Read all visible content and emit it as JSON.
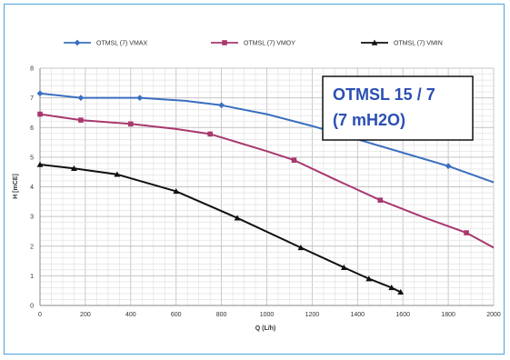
{
  "chart_data": {
    "type": "line",
    "title": "",
    "xlabel": "Q (L/h)",
    "ylabel": "H [mCE]",
    "xlim": [
      0,
      2000
    ],
    "ylim": [
      0,
      8
    ],
    "x_ticks": [
      0,
      200,
      400,
      600,
      800,
      1000,
      1200,
      1400,
      1600,
      1800,
      2000
    ],
    "y_ticks": [
      0,
      1,
      2,
      3,
      4,
      5,
      6,
      7,
      8
    ],
    "grid": true,
    "legend_position": "top",
    "annotation": {
      "line1": "OTMSL 15 / 7",
      "line2": "(7 mH2O)"
    },
    "series": [
      {
        "name": "OTMSL (7) VMAX",
        "color": "#3a6fc0",
        "marker": "diamond",
        "points": [
          [
            0,
            7.15
          ],
          [
            180,
            7.0
          ],
          [
            440,
            7.0
          ],
          [
            640,
            6.9
          ],
          [
            800,
            6.75
          ],
          [
            1000,
            6.45
          ],
          [
            1200,
            6.05
          ],
          [
            1400,
            5.6
          ],
          [
            1600,
            5.15
          ],
          [
            1800,
            4.7
          ],
          [
            2000,
            4.15
          ]
        ],
        "marker_points": [
          [
            0,
            7.15
          ],
          [
            180,
            7.0
          ],
          [
            440,
            7.0
          ],
          [
            800,
            6.75
          ],
          [
            1800,
            4.7
          ]
        ]
      },
      {
        "name": "OTMSL (7) VMOY",
        "color": "#a8386e",
        "marker": "square",
        "points": [
          [
            0,
            6.45
          ],
          [
            180,
            6.25
          ],
          [
            400,
            6.12
          ],
          [
            600,
            5.95
          ],
          [
            750,
            5.78
          ],
          [
            1000,
            5.2
          ],
          [
            1120,
            4.9
          ],
          [
            1300,
            4.25
          ],
          [
            1500,
            3.55
          ],
          [
            1700,
            2.95
          ],
          [
            1880,
            2.45
          ],
          [
            2000,
            1.95
          ]
        ],
        "marker_points": [
          [
            0,
            6.45
          ],
          [
            180,
            6.25
          ],
          [
            400,
            6.12
          ],
          [
            750,
            5.78
          ],
          [
            1120,
            4.9
          ],
          [
            1500,
            3.55
          ],
          [
            1880,
            2.45
          ]
        ]
      },
      {
        "name": "OTMSL (7) VMIN",
        "color": "#111111",
        "marker": "triangle",
        "points": [
          [
            0,
            4.75
          ],
          [
            150,
            4.62
          ],
          [
            340,
            4.42
          ],
          [
            600,
            3.85
          ],
          [
            870,
            2.95
          ],
          [
            1150,
            1.95
          ],
          [
            1340,
            1.28
          ],
          [
            1450,
            0.9
          ],
          [
            1550,
            0.6
          ],
          [
            1590,
            0.45
          ]
        ],
        "marker_points": [
          [
            0,
            4.75
          ],
          [
            150,
            4.62
          ],
          [
            340,
            4.42
          ],
          [
            600,
            3.85
          ],
          [
            870,
            2.95
          ],
          [
            1150,
            1.95
          ],
          [
            1340,
            1.28
          ],
          [
            1450,
            0.9
          ],
          [
            1550,
            0.6
          ],
          [
            1590,
            0.45
          ]
        ]
      }
    ]
  }
}
